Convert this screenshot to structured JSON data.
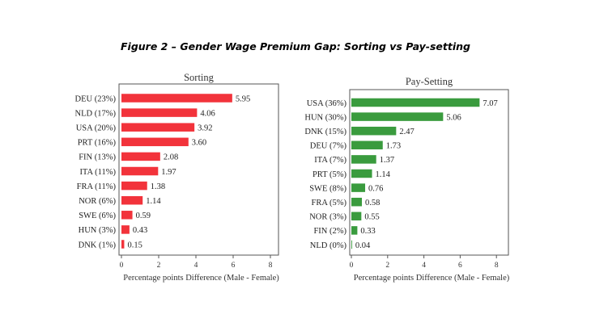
{
  "figure": {
    "title": "Figure 2 – Gender Wage Premium Gap: Sorting vs Pay-setting"
  },
  "chart_data": [
    {
      "type": "bar",
      "orientation": "horizontal",
      "title": "Sorting",
      "xlabel": "Percentage points Difference (Male - Female)",
      "ylabel": "",
      "xlim": [
        0,
        8
      ],
      "xticks": [
        "0",
        "2",
        "4",
        "6",
        "8"
      ],
      "grid": false,
      "color": "#f2333b",
      "categories": [
        "DEU (23%)",
        "NLD (17%)",
        "USA (20%)",
        "PRT (16%)",
        "FIN (13%)",
        "ITA (11%)",
        "FRA (11%)",
        "NOR (6%)",
        "SWE (6%)",
        "HUN (3%)",
        "DNK (1%)"
      ],
      "values": [
        5.95,
        4.06,
        3.92,
        3.6,
        2.08,
        1.97,
        1.38,
        1.14,
        0.59,
        0.43,
        0.15
      ],
      "value_labels": [
        "5.95",
        "4.06",
        "3.92",
        "3.60",
        "2.08",
        "1.97",
        "1.38",
        "1.14",
        "0.59",
        "0.43",
        "0.15"
      ]
    },
    {
      "type": "bar",
      "orientation": "horizontal",
      "title": "Pay-Setting",
      "xlabel": "Percentage points Difference (Male - Female)",
      "ylabel": "",
      "xlim": [
        0,
        8
      ],
      "xticks": [
        "0",
        "2",
        "4",
        "6",
        "8"
      ],
      "grid": false,
      "color": "#3a9b3e",
      "categories": [
        "USA (36%)",
        "HUN (30%)",
        "DNK (15%)",
        "DEU (7%)",
        "ITA (7%)",
        "PRT (5%)",
        "SWE (8%)",
        "FRA (5%)",
        "NOR (3%)",
        "FIN (2%)",
        "NLD (0%)"
      ],
      "values": [
        7.07,
        5.06,
        2.47,
        1.73,
        1.37,
        1.14,
        0.76,
        0.58,
        0.55,
        0.33,
        0.04
      ],
      "value_labels": [
        "7.07",
        "5.06",
        "2.47",
        "1.73",
        "1.37",
        "1.14",
        "0.76",
        "0.58",
        "0.55",
        "0.33",
        "0.04"
      ]
    }
  ]
}
